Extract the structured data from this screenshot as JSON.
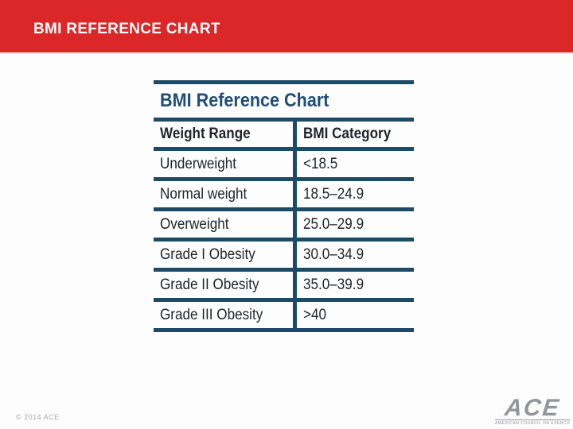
{
  "slide": {
    "title": "BMI REFERENCE CHART",
    "copyright": "© 2014 ACE",
    "logo": {
      "text": "ACE",
      "tagline": "AMERICAN COUNCIL ON EXERCISE®"
    }
  },
  "table": {
    "title": "BMI Reference Chart",
    "columns": [
      "Weight Range",
      "BMI Category"
    ],
    "rows": [
      [
        "Underweight",
        "<18.5"
      ],
      [
        "Normal weight",
        "18.5–24.9"
      ],
      [
        "Overweight",
        "25.0–29.9"
      ],
      [
        "Grade I Obesity",
        "30.0–34.9"
      ],
      [
        "Grade II Obesity",
        "35.0–39.9"
      ],
      [
        "Grade III Obesity",
        ">40"
      ]
    ]
  },
  "colors": {
    "accent_red": "#DB2727",
    "table_border_navy": "#1C4B68",
    "table_title_navy": "#1F4E78",
    "cell_text": "#1F242B",
    "footer_gray": "#ACACAC",
    "logo_gray": "#94959A"
  }
}
